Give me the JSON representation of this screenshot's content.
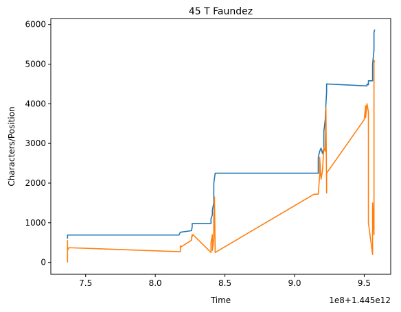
{
  "chart_data": {
    "type": "line",
    "title": "45 T Faundez",
    "xlabel": "Time",
    "ylabel": "Characters/Position",
    "x_offset_label": "1e8+1.445e12",
    "xlim": [
      7.25,
      9.69
    ],
    "ylim": [
      -300,
      6150
    ],
    "x_ticks": [
      7.5,
      8.0,
      8.5,
      9.0,
      9.5
    ],
    "x_tick_labels": [
      "7.5",
      "8.0",
      "8.5",
      "9.0",
      "9.5"
    ],
    "y_ticks": [
      0,
      1000,
      2000,
      3000,
      4000,
      5000,
      6000
    ],
    "y_tick_labels": [
      "0",
      "1000",
      "2000",
      "3000",
      "4000",
      "5000",
      "6000"
    ],
    "grid": false,
    "series": [
      {
        "color": "#1f77b4",
        "x": [
          7.37,
          7.37,
          8.17,
          8.18,
          8.26,
          8.265,
          8.265,
          8.4,
          8.4,
          8.41,
          8.41,
          8.42,
          8.42,
          8.43,
          9.17,
          9.17,
          9.18,
          9.19,
          9.2,
          9.21,
          9.21,
          9.22,
          9.225,
          9.23,
          9.23,
          9.52,
          9.52,
          9.53,
          9.53,
          9.56,
          9.56,
          9.57,
          9.57,
          9.575
        ],
        "y": [
          600,
          690,
          690,
          760,
          800,
          900,
          980,
          980,
          1100,
          1200,
          1320,
          1500,
          2000,
          2250,
          2250,
          2650,
          2800,
          2880,
          2750,
          2880,
          3300,
          3600,
          4000,
          4300,
          4500,
          4450,
          4500,
          4480,
          4580,
          4580,
          5000,
          5350,
          5800,
          5870
        ]
      },
      {
        "color": "#ff7f0e",
        "x": [
          7.37,
          7.37,
          7.37,
          7.37,
          7.38,
          8.18,
          8.18,
          8.18,
          8.18,
          8.26,
          8.265,
          8.26,
          8.27,
          8.4,
          8.4,
          8.41,
          8.41,
          8.42,
          8.42,
          8.425,
          8.43,
          9.14,
          9.17,
          9.18,
          9.18,
          9.19,
          9.2,
          9.205,
          9.21,
          9.22,
          9.225,
          9.23,
          9.23,
          9.5,
          9.51,
          9.51,
          9.52,
          9.53,
          9.53,
          9.56,
          9.56,
          9.57,
          9.57,
          9.575
        ],
        "y": [
          0,
          300,
          550,
          300,
          370,
          270,
          420,
          300,
          380,
          560,
          700,
          620,
          700,
          250,
          500,
          700,
          300,
          600,
          1100,
          1650,
          250,
          1720,
          1720,
          2200,
          2650,
          2100,
          2300,
          2600,
          2900,
          2800,
          3900,
          1750,
          2250,
          3600,
          3950,
          3650,
          4000,
          3800,
          1000,
          200,
          1500,
          700,
          5100,
          5050
        ]
      }
    ]
  }
}
